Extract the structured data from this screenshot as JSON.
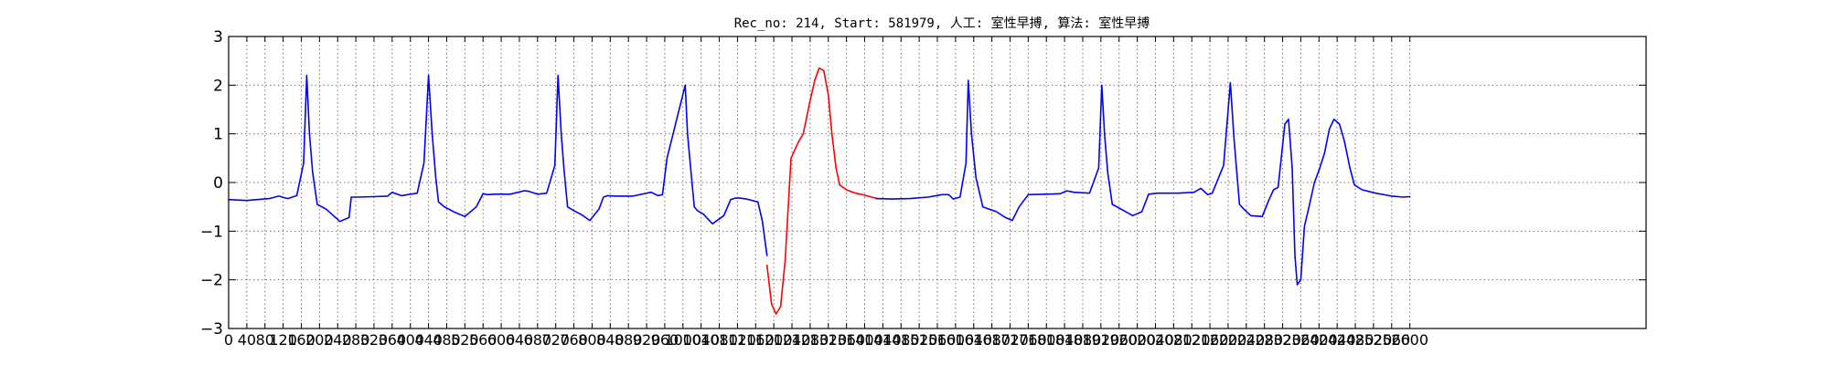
{
  "chart_data": {
    "type": "line",
    "title": "Rec_no: 214, Start: 581979, 人工: 室性早搏, 算法: 室性早搏",
    "xlabel": "",
    "ylabel": "",
    "ylim": [
      -3,
      3
    ],
    "xlim": [
      0,
      3120
    ],
    "yticks": [
      3,
      2,
      1,
      0,
      -1,
      -2,
      -3
    ],
    "ytick_labels": [
      "3",
      "2",
      "1",
      "0",
      "−1",
      "−2",
      "−3"
    ],
    "xticks": [
      0,
      40,
      80,
      120,
      160,
      200,
      240,
      280,
      320,
      360,
      400,
      440,
      480,
      520,
      560,
      600,
      640,
      680,
      720,
      760,
      800,
      840,
      880,
      920,
      960,
      1000,
      1040,
      1080,
      1120,
      1160,
      1200,
      1240,
      1280,
      1320,
      1360,
      1400,
      1440,
      1480,
      1520,
      1560,
      1600,
      1640,
      1680,
      1720,
      1760,
      1800,
      1840,
      1880,
      1920,
      1960,
      2000,
      2040,
      2080,
      2120,
      2160,
      2200,
      2240,
      2280,
      2320,
      2360,
      2400,
      2440,
      2480,
      2520,
      2560,
      2600
    ],
    "xtick_labels": [
      "0",
      "40",
      "80",
      "120",
      "160",
      "200",
      "240",
      "280",
      "320",
      "360",
      "400",
      "440",
      "480",
      "520",
      "560",
      "600",
      "640",
      "680",
      "720",
      "760",
      "800",
      "840",
      "880",
      "920",
      "960",
      "1000",
      "1040",
      "1080",
      "1120",
      "1160",
      "1200",
      "1240",
      "1280",
      "1320",
      "1360",
      "1400",
      "1440",
      "1480",
      "1520",
      "1560",
      "1600",
      "1640",
      "1680",
      "1720",
      "1760",
      "1800",
      "1840",
      "1880",
      "1920",
      "1960",
      "2000",
      "2040",
      "2080",
      "2120",
      "2160",
      "2200",
      "2240",
      "2280",
      "2320",
      "2360",
      "2400",
      "2440",
      "2480",
      "2520",
      "2560",
      "2600"
    ],
    "grid": true,
    "series": [
      {
        "color": "#0000ff",
        "x": [
          0,
          40,
          90,
          110,
          130,
          150,
          165,
          172,
          178,
          185,
          195,
          215,
          245,
          265,
          270,
          285,
          320,
          350,
          360,
          380,
          415,
          430,
          440,
          448,
          456,
          462,
          475,
          495,
          520,
          545,
          560,
          570,
          585,
          620,
          650,
          660,
          680,
          700,
          718,
          725,
          732,
          738,
          746,
          760,
          775,
          795,
          815,
          825,
          835,
          850,
          890,
          930,
          945,
          955,
          965,
          1005,
          1010,
          1017,
          1025,
          1032,
          1045,
          1065,
          1090,
          1105,
          1115,
          1125,
          1140,
          1165,
          1175,
          1185
        ],
        "y": [
          -0.35,
          -0.37,
          -0.33,
          -0.28,
          -0.33,
          -0.27,
          0.4,
          2.2,
          1.0,
          0.2,
          -0.45,
          -0.55,
          -0.8,
          -0.72,
          -0.3,
          -0.3,
          -0.29,
          -0.28,
          -0.2,
          -0.27,
          -0.22,
          0.4,
          2.2,
          1.0,
          0.1,
          -0.4,
          -0.5,
          -0.6,
          -0.7,
          -0.5,
          -0.23,
          -0.25,
          -0.24,
          -0.24,
          -0.17,
          -0.18,
          -0.24,
          -0.22,
          0.35,
          2.2,
          1.0,
          0.3,
          -0.5,
          -0.58,
          -0.65,
          -0.78,
          -0.55,
          -0.3,
          -0.27,
          -0.28,
          -0.28,
          -0.2,
          -0.27,
          -0.25,
          0.5,
          2.0,
          1.0,
          0.3,
          -0.5,
          -0.58,
          -0.65,
          -0.85,
          -0.68,
          -0.35,
          -0.32,
          -0.32,
          -0.34,
          -0.4,
          -0.8,
          -1.5
        ]
      },
      {
        "color": "#ff0000",
        "x": [
          1185,
          1195,
          1205,
          1215,
          1225,
          1238,
          1255,
          1265,
          1278,
          1290,
          1300,
          1310,
          1320,
          1328,
          1337,
          1345,
          1360,
          1380,
          1400,
          1415,
          1425
        ],
        "y": [
          -1.7,
          -2.5,
          -2.7,
          -2.55,
          -1.6,
          0.5,
          0.85,
          1.0,
          1.6,
          2.1,
          2.35,
          2.3,
          1.8,
          1.0,
          0.3,
          -0.05,
          -0.15,
          -0.22,
          -0.26,
          -0.3,
          -0.32
        ]
      },
      {
        "color": "#0000ff",
        "x": [
          1425,
          1460,
          1500,
          1540,
          1570,
          1585,
          1595,
          1610,
          1623,
          1628,
          1635,
          1645,
          1660,
          1690,
          1710,
          1725,
          1740,
          1760,
          1800,
          1830,
          1845,
          1860,
          1895,
          1915,
          1922,
          1928,
          1935,
          1945,
          1965,
          1990,
          2010,
          2025,
          2045,
          2090,
          2125,
          2140,
          2155,
          2165,
          2190,
          2205,
          2213,
          2220,
          2225,
          2235,
          2250,
          2275,
          2290,
          2300,
          2310,
          2325,
          2333,
          2341,
          2347,
          2352,
          2360,
          2368,
          2378,
          2390,
          2400,
          2412,
          2423,
          2433,
          2445,
          2456,
          2468,
          2478,
          2495,
          2525,
          2560,
          2585,
          2600
        ],
        "y": [
          -0.33,
          -0.34,
          -0.33,
          -0.3,
          -0.25,
          -0.25,
          -0.34,
          -0.3,
          0.4,
          2.1,
          1.0,
          0.1,
          -0.5,
          -0.6,
          -0.72,
          -0.78,
          -0.5,
          -0.25,
          -0.24,
          -0.23,
          -0.17,
          -0.2,
          -0.22,
          0.3,
          2.0,
          1.0,
          0.2,
          -0.45,
          -0.55,
          -0.68,
          -0.6,
          -0.24,
          -0.22,
          -0.22,
          -0.2,
          -0.12,
          -0.25,
          -0.22,
          0.35,
          2.05,
          0.9,
          0.1,
          -0.45,
          -0.55,
          -0.68,
          -0.7,
          -0.35,
          -0.15,
          -0.1,
          1.2,
          1.3,
          0.3,
          -1.5,
          -2.1,
          -2.0,
          -0.9,
          -0.5,
          0.0,
          0.25,
          0.6,
          1.1,
          1.3,
          1.2,
          0.85,
          0.3,
          -0.05,
          -0.15,
          -0.22,
          -0.28,
          -0.3,
          -0.29
        ]
      }
    ]
  }
}
